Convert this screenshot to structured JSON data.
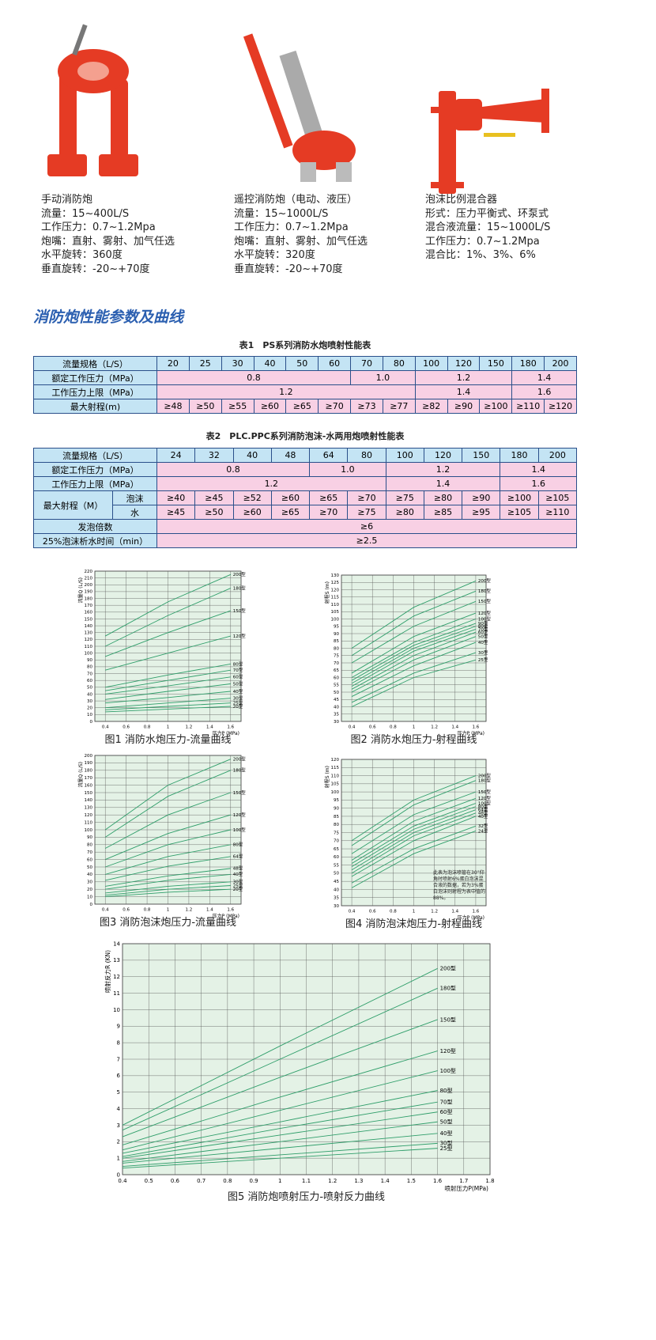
{
  "products": [
    {
      "title": "手动消防炮",
      "lines": [
        "流量：15~400L/S",
        "工作压力：0.7~1.2Mpa",
        "炮嘴：直射、雾射、加气任选",
        "水平旋转：360度",
        "垂直旋转：-20~+70度"
      ]
    },
    {
      "title": "遥控消防炮（电动、液压）",
      "lines": [
        "流量：15~1000L/S",
        "工作压力：0.7~1.2Mpa",
        "炮嘴：直射、雾射、加气任选",
        "水平旋转：320度",
        "垂直旋转：-20~+70度"
      ]
    },
    {
      "title": "泡沫比例混合器",
      "lines": [
        "形式：压力平衡式、环泵式",
        "混合液流量：15~1000L/S",
        "工作压力：0.7~1.2Mpa",
        "混合比：1%、3%、6%"
      ]
    }
  ],
  "section_title": "消防炮性能参数及曲线",
  "tables": [
    {
      "caption": "表1　PS系列消防水炮喷射性能表",
      "rows": [
        [
          "流量规格（L/S）",
          "20",
          "25",
          "30",
          "40",
          "50",
          "60",
          "70",
          "80",
          "100",
          "120",
          "150",
          "180",
          "200"
        ],
        [
          "额定工作压力（MPa）",
          "0.8",
          "1.0",
          "1.2",
          "1.4"
        ],
        [
          "工作压力上限（MPa）",
          "1.2",
          "1.4",
          "1.6"
        ],
        [
          "最大射程(m)",
          "≥48",
          "≥50",
          "≥55",
          "≥60",
          "≥65",
          "≥70",
          "≥73",
          "≥77",
          "≥82",
          "≥90",
          "≥100",
          "≥110",
          "≥120"
        ]
      ]
    },
    {
      "caption": "表2　PLC.PPC系列消防泡沫-水两用炮喷射性能表",
      "rows": [
        [
          "流量规格（L/S）",
          "24",
          "32",
          "40",
          "48",
          "64",
          "80",
          "100",
          "120",
          "150",
          "180",
          "200"
        ],
        [
          "额定工作压力（MPa）",
          "0.8",
          "1.0",
          "1.2",
          "1.4"
        ],
        [
          "工作压力上限（MPa）",
          "1.2",
          "1.4",
          "1.6"
        ],
        [
          "最大射程（M）",
          "泡沫",
          "≥40",
          "≥45",
          "≥52",
          "≥60",
          "≥65",
          "≥70",
          "≥75",
          "≥80",
          "≥90",
          "≥100",
          "≥105"
        ],
        [
          "水",
          "≥45",
          "≥50",
          "≥60",
          "≥65",
          "≥70",
          "≥75",
          "≥80",
          "≥85",
          "≥95",
          "≥105",
          "≥110"
        ],
        [
          "发泡倍数",
          "≥6"
        ],
        [
          "25%泡沫析水时间（min）",
          "≥2.5"
        ]
      ]
    }
  ],
  "figures": [
    {
      "type": "line",
      "caption": "图1 消防水炮压力-流量曲线",
      "y_label": "流量Q (L/S)",
      "x_label": "压力P (MPa)",
      "color": "#2f9e6a",
      "xlim": [
        0.3,
        1.7
      ],
      "xticks": [
        0.4,
        0.6,
        0.8,
        1,
        1.2,
        1.4,
        1.6
      ],
      "ylim": [
        0,
        220
      ],
      "yticks": [
        0,
        10,
        20,
        30,
        40,
        50,
        60,
        70,
        80,
        90,
        100,
        110,
        120,
        130,
        140,
        150,
        160,
        170,
        180,
        190,
        200,
        210,
        220
      ],
      "x": [
        0.4,
        1.0,
        1.6
      ],
      "series": [
        {
          "name": "200型",
          "values": [
            125,
            175,
            215
          ]
        },
        {
          "name": "180型",
          "values": [
            110,
            155,
            195
          ]
        },
        {
          "name": "150型",
          "values": [
            95,
            130,
            162
          ]
        },
        {
          "name": "120型",
          "values": [
            75,
            100,
            125
          ]
        },
        {
          "name": "80型",
          "values": [
            50,
            68,
            84
          ]
        },
        {
          "name": "70型",
          "values": [
            45,
            60,
            75
          ]
        },
        {
          "name": "60型",
          "values": [
            40,
            52,
            65
          ]
        },
        {
          "name": "50型",
          "values": [
            32,
            44,
            55
          ]
        },
        {
          "name": "40型",
          "values": [
            27,
            35,
            44
          ]
        },
        {
          "name": "30型",
          "values": [
            20,
            27,
            34
          ]
        },
        {
          "name": "25型",
          "values": [
            17,
            22,
            27
          ]
        },
        {
          "name": "20型",
          "values": [
            14,
            18,
            22
          ]
        }
      ]
    },
    {
      "type": "line",
      "caption": "图2 消防水炮压力-射程曲线",
      "y_label": "射程S (m)",
      "x_label": "压力P (MPa)",
      "color": "#2f9e6a",
      "xlim": [
        0.3,
        1.7
      ],
      "xticks": [
        0.4,
        0.6,
        0.8,
        1,
        1.2,
        1.4,
        1.6
      ],
      "ylim": [
        30,
        130
      ],
      "yticks": [
        30,
        35,
        40,
        45,
        50,
        55,
        60,
        65,
        70,
        75,
        80,
        85,
        90,
        95,
        100,
        105,
        110,
        115,
        120,
        125,
        130
      ],
      "x": [
        0.4,
        1.0,
        1.6
      ],
      "series": [
        {
          "name": "200型",
          "values": [
            80,
            108,
            126
          ]
        },
        {
          "name": "180型",
          "values": [
            75,
            102,
            119
          ]
        },
        {
          "name": "150型",
          "values": [
            70,
            95,
            112
          ]
        },
        {
          "name": "120型",
          "values": [
            63,
            88,
            104
          ]
        },
        {
          "name": "100型",
          "values": [
            60,
            84,
            100
          ]
        },
        {
          "name": "90型",
          "values": [
            58,
            82,
            97
          ]
        },
        {
          "name": "80型",
          "values": [
            56,
            80,
            95
          ]
        },
        {
          "name": "70型",
          "values": [
            54,
            78,
            93
          ]
        },
        {
          "name": "60型",
          "values": [
            52,
            75,
            91
          ]
        },
        {
          "name": "50型",
          "values": [
            50,
            72,
            88
          ]
        },
        {
          "name": "40型",
          "values": [
            47,
            68,
            84
          ]
        },
        {
          "name": "30型",
          "values": [
            43,
            63,
            77
          ]
        },
        {
          "name": "25型",
          "values": [
            40,
            60,
            72
          ]
        }
      ]
    },
    {
      "type": "line",
      "caption": "图3 消防泡沫炮压力-流量曲线",
      "y_label": "流量Q (L/S)",
      "x_label": "压力P (MPa)",
      "color": "#2f9e6a",
      "xlim": [
        0.3,
        1.7
      ],
      "xticks": [
        0.4,
        0.6,
        0.8,
        1,
        1.2,
        1.4,
        1.6
      ],
      "ylim": [
        0,
        200
      ],
      "yticks": [
        0,
        10,
        20,
        30,
        40,
        50,
        60,
        70,
        80,
        90,
        100,
        110,
        120,
        130,
        140,
        150,
        160,
        170,
        180,
        190,
        200
      ],
      "x": [
        0.4,
        1.0,
        1.6
      ],
      "series": [
        {
          "name": "200型",
          "values": [
            100,
            160,
            195
          ]
        },
        {
          "name": "180型",
          "values": [
            90,
            145,
            180
          ]
        },
        {
          "name": "150型",
          "values": [
            75,
            120,
            150
          ]
        },
        {
          "name": "120型",
          "values": [
            60,
            95,
            120
          ]
        },
        {
          "name": "100型",
          "values": [
            50,
            80,
            100
          ]
        },
        {
          "name": "80型",
          "values": [
            40,
            64,
            80
          ]
        },
        {
          "name": "64型",
          "values": [
            32,
            51,
            64
          ]
        },
        {
          "name": "48型",
          "values": [
            24,
            38,
            48
          ]
        },
        {
          "name": "40型",
          "values": [
            20,
            32,
            40
          ]
        },
        {
          "name": "30型",
          "values": [
            15,
            24,
            30
          ]
        },
        {
          "name": "25型",
          "values": [
            12,
            20,
            25
          ]
        },
        {
          "name": "20型",
          "values": [
            10,
            16,
            20
          ]
        }
      ]
    },
    {
      "type": "line",
      "caption": "图4 消防泡沫炮压力-射程曲线",
      "y_label": "射程S (m)",
      "x_label": "压力P (MPa)",
      "color": "#2f9e6a",
      "note": "此表为泡沫喷管在30°仰角时喷射6%蛋白泡沫混合液的数据，若为3%蛋白泡沫则射程为表中值的88%。",
      "xlim": [
        0.3,
        1.7
      ],
      "xticks": [
        0.4,
        0.6,
        0.8,
        1,
        1.2,
        1.4,
        1.6
      ],
      "ylim": [
        30,
        120
      ],
      "yticks": [
        30,
        35,
        40,
        45,
        50,
        55,
        60,
        65,
        70,
        75,
        80,
        85,
        90,
        95,
        100,
        105,
        110,
        115,
        120
      ],
      "x": [
        0.4,
        1.0,
        1.6
      ],
      "series": [
        {
          "name": "200型",
          "values": [
            70,
            95,
            110
          ]
        },
        {
          "name": "180型",
          "values": [
            67,
            92,
            107
          ]
        },
        {
          "name": "150型",
          "values": [
            62,
            86,
            100
          ]
        },
        {
          "name": "120型",
          "values": [
            58,
            82,
            96
          ]
        },
        {
          "name": "100型",
          "values": [
            56,
            79,
            93
          ]
        },
        {
          "name": "80型",
          "values": [
            54,
            77,
            91
          ]
        },
        {
          "name": "64型",
          "values": [
            52,
            75,
            89
          ]
        },
        {
          "name": "48型",
          "values": [
            50,
            73,
            87
          ]
        },
        {
          "name": "40型",
          "values": [
            48,
            70,
            85
          ]
        },
        {
          "name": "32型",
          "values": [
            44,
            65,
            79
          ]
        },
        {
          "name": "24型",
          "values": [
            41,
            62,
            76
          ]
        }
      ]
    },
    {
      "type": "line",
      "caption": "图5 消防炮喷射压力-喷射反力曲线",
      "y_label": "喷射反力R (KN)",
      "x_label": "喷射压力P(MPa)",
      "color": "#2f9e6a",
      "xlim": [
        0.4,
        1.8
      ],
      "xticks": [
        0.4,
        0.5,
        0.6,
        0.7,
        0.8,
        0.9,
        1,
        1.1,
        1.2,
        1.3,
        1.4,
        1.5,
        1.6,
        1.7,
        1.8
      ],
      "ylim": [
        0,
        14
      ],
      "yticks": [
        0,
        1,
        2,
        3,
        4,
        5,
        6,
        7,
        8,
        9,
        10,
        11,
        12,
        13,
        14
      ],
      "x": [
        0.4,
        1.0,
        1.6
      ],
      "series": [
        {
          "name": "200型",
          "values": [
            3.0,
            7.8,
            12.5
          ]
        },
        {
          "name": "180型",
          "values": [
            2.7,
            7.0,
            11.3
          ]
        },
        {
          "name": "150型",
          "values": [
            2.3,
            5.9,
            9.4
          ]
        },
        {
          "name": "120型",
          "values": [
            1.8,
            4.7,
            7.5
          ]
        },
        {
          "name": "100型",
          "values": [
            1.5,
            3.9,
            6.3
          ]
        },
        {
          "name": "80型",
          "values": [
            1.3,
            3.2,
            5.1
          ]
        },
        {
          "name": "70型",
          "values": [
            1.1,
            2.8,
            4.4
          ]
        },
        {
          "name": "60型",
          "values": [
            1.0,
            2.4,
            3.8
          ]
        },
        {
          "name": "50型",
          "values": [
            0.8,
            2.0,
            3.2
          ]
        },
        {
          "name": "40型",
          "values": [
            0.7,
            1.6,
            2.5
          ]
        },
        {
          "name": "30型",
          "values": [
            0.5,
            1.2,
            1.9
          ]
        },
        {
          "name": "25型",
          "values": [
            0.4,
            1.0,
            1.6
          ]
        }
      ]
    }
  ]
}
